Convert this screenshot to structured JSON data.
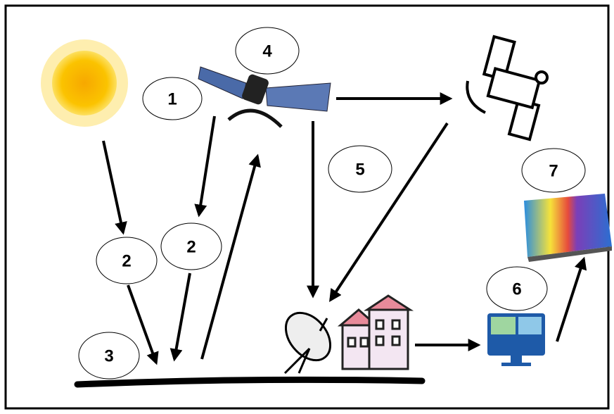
{
  "nodes": [
    {
      "label": "1"
    },
    {
      "label": "2"
    },
    {
      "label": "2"
    },
    {
      "label": "3"
    },
    {
      "label": "4"
    },
    {
      "label": "5"
    },
    {
      "label": "6"
    },
    {
      "label": "7"
    }
  ]
}
